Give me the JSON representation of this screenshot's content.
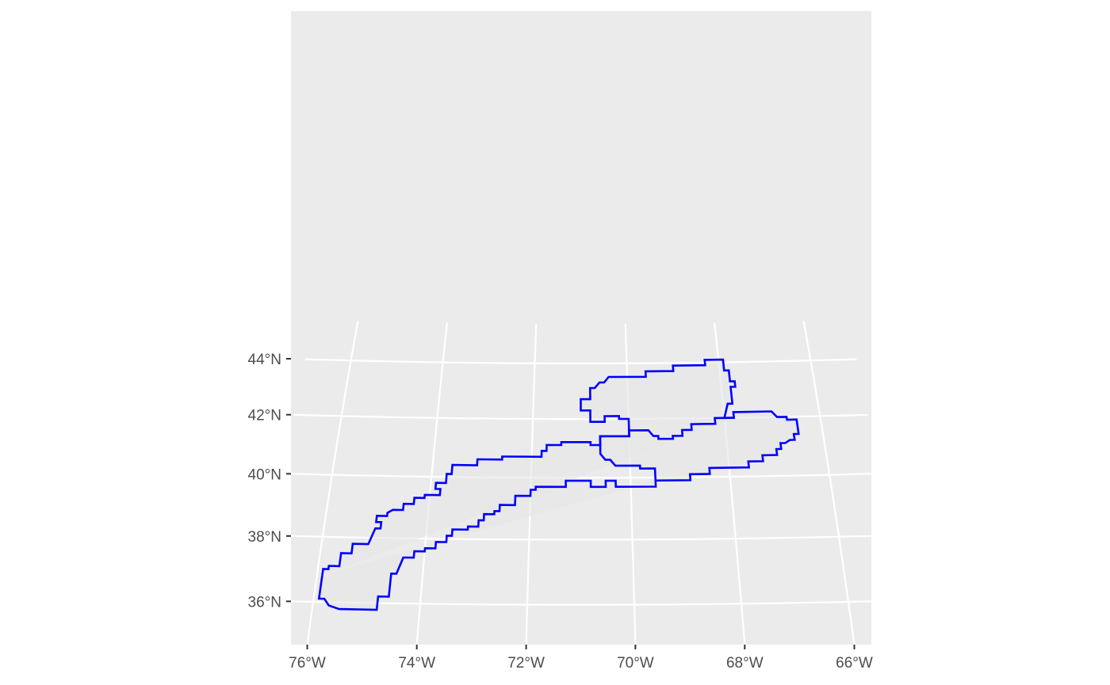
{
  "chart_data": {
    "type": "map",
    "projection": "conic",
    "xlim": [
      -76.2,
      -65.8
    ],
    "ylim": [
      35.5,
      44.9
    ],
    "x_breaks": [
      -76,
      -74,
      -72,
      -70,
      -68,
      -66
    ],
    "y_breaks": [
      36,
      38,
      40,
      42,
      44
    ],
    "x_tick_labels": [
      "76°W",
      "74°W",
      "72°W",
      "70°W",
      "68°W",
      "66°W"
    ],
    "y_tick_labels": [
      "36°N",
      "38°N",
      "40°N",
      "42°N",
      "44°N"
    ],
    "grid": true,
    "polygons": [
      {
        "name": "",
        "outline_color": "#0000ff",
        "fill_color": "#e6e6e6",
        "coords": [
          [
            -75.9,
            36.8
          ],
          [
            -75.9,
            36.1
          ],
          [
            -75.8,
            36.1
          ],
          [
            -75.7,
            35.9
          ],
          [
            -75.5,
            35.8
          ],
          [
            -74.8,
            35.8
          ],
          [
            -74.8,
            36.2
          ],
          [
            -74.6,
            36.2
          ],
          [
            -74.6,
            36.9
          ],
          [
            -74.5,
            36.9
          ],
          [
            -74.4,
            37.4
          ],
          [
            -74.2,
            37.4
          ],
          [
            -74.2,
            37.6
          ],
          [
            -74.0,
            37.6
          ],
          [
            -74.0,
            37.7
          ],
          [
            -73.8,
            37.7
          ],
          [
            -73.8,
            37.9
          ],
          [
            -73.6,
            37.9
          ],
          [
            -73.6,
            38.1
          ],
          [
            -73.5,
            38.1
          ],
          [
            -73.5,
            38.3
          ],
          [
            -73.2,
            38.3
          ],
          [
            -73.2,
            38.4
          ],
          [
            -73.0,
            38.4
          ],
          [
            -73.0,
            38.6
          ],
          [
            -72.9,
            38.6
          ],
          [
            -72.9,
            38.8
          ],
          [
            -72.7,
            38.8
          ],
          [
            -72.7,
            38.9
          ],
          [
            -72.6,
            38.9
          ],
          [
            -72.6,
            39.1
          ],
          [
            -72.3,
            39.1
          ],
          [
            -72.3,
            39.4
          ],
          [
            -72.0,
            39.4
          ],
          [
            -72.0,
            39.6
          ],
          [
            -71.9,
            39.6
          ],
          [
            -71.9,
            39.7
          ],
          [
            -71.3,
            39.7
          ],
          [
            -71.3,
            39.9
          ],
          [
            -70.8,
            39.9
          ],
          [
            -70.8,
            39.7
          ],
          [
            -70.5,
            39.7
          ],
          [
            -70.5,
            39.9
          ],
          [
            -70.3,
            39.9
          ],
          [
            -70.3,
            39.7
          ],
          [
            -69.5,
            39.7
          ],
          [
            -69.5,
            40.3
          ],
          [
            -69.8,
            40.3
          ],
          [
            -69.8,
            40.4
          ],
          [
            -70.3,
            40.4
          ],
          [
            -70.4,
            40.6
          ],
          [
            -70.5,
            40.6
          ],
          [
            -70.6,
            40.8
          ],
          [
            -70.6,
            41.4
          ],
          [
            -70.0,
            41.4
          ],
          [
            -70.0,
            42.0
          ],
          [
            -70.2,
            42.0
          ],
          [
            -70.2,
            42.1
          ],
          [
            -70.5,
            42.1
          ],
          [
            -70.5,
            41.9
          ],
          [
            -70.8,
            41.9
          ],
          [
            -70.8,
            42.3
          ],
          [
            -71.0,
            42.3
          ],
          [
            -71.0,
            42.5
          ],
          [
            -71.0,
            42.5
          ],
          [
            -71.0,
            42.7
          ],
          [
            -70.8,
            42.7
          ],
          [
            -70.8,
            43.1
          ],
          [
            -70.7,
            43.1
          ],
          [
            -70.6,
            43.3
          ],
          [
            -70.5,
            43.3
          ],
          [
            -70.4,
            43.5
          ],
          [
            -69.6,
            43.5
          ],
          [
            -69.6,
            43.7
          ],
          [
            -69.0,
            43.7
          ],
          [
            -69.0,
            43.9
          ],
          [
            -68.3,
            43.9
          ],
          [
            -68.3,
            44.1
          ],
          [
            -67.9,
            44.1
          ],
          [
            -67.9,
            43.7
          ],
          [
            -67.8,
            43.7
          ],
          [
            -67.8,
            43.3
          ],
          [
            -67.7,
            43.3
          ],
          [
            -67.7,
            43.1
          ],
          [
            -67.8,
            43.1
          ],
          [
            -67.8,
            42.5
          ],
          [
            -67.9,
            42.5
          ],
          [
            -68.0,
            42.0
          ],
          [
            -67.8,
            42.0
          ],
          [
            -67.8,
            42.2
          ],
          [
            -67.0,
            42.2
          ],
          [
            -66.9,
            42.0
          ],
          [
            -66.7,
            42.0
          ],
          [
            -66.7,
            41.9
          ],
          [
            -66.5,
            41.9
          ],
          [
            -66.5,
            41.4
          ],
          [
            -66.6,
            41.4
          ],
          [
            -66.6,
            41.2
          ],
          [
            -66.7,
            41.2
          ],
          [
            -66.8,
            41.1
          ],
          [
            -66.9,
            41.1
          ],
          [
            -66.9,
            40.9
          ],
          [
            -67.0,
            40.9
          ],
          [
            -67.0,
            40.7
          ],
          [
            -67.3,
            40.7
          ],
          [
            -67.3,
            40.5
          ],
          [
            -67.6,
            40.5
          ],
          [
            -67.6,
            40.3
          ],
          [
            -68.4,
            40.3
          ],
          [
            -68.4,
            40.1
          ],
          [
            -68.8,
            40.1
          ],
          [
            -68.8,
            39.9
          ],
          [
            -69.5,
            39.9
          ]
        ]
      },
      {
        "name": "",
        "outline_color": "#0000ff",
        "fill_color": "#e6e6e6",
        "coords": [
          [
            -75.9,
            36.8
          ],
          [
            -75.9,
            37.0
          ],
          [
            -75.8,
            37.0
          ],
          [
            -75.8,
            37.1
          ],
          [
            -75.6,
            37.1
          ],
          [
            -75.6,
            37.5
          ],
          [
            -75.4,
            37.5
          ],
          [
            -75.4,
            37.8
          ],
          [
            -75.1,
            37.8
          ],
          [
            -75.0,
            38.3
          ],
          [
            -74.9,
            38.3
          ],
          [
            -74.9,
            38.5
          ],
          [
            -75.0,
            38.5
          ],
          [
            -75.0,
            38.7
          ],
          [
            -74.8,
            38.7
          ],
          [
            -74.8,
            38.8
          ],
          [
            -74.7,
            38.9
          ],
          [
            -74.5,
            38.9
          ],
          [
            -74.5,
            39.1
          ],
          [
            -74.3,
            39.1
          ],
          [
            -74.3,
            39.3
          ],
          [
            -74.1,
            39.3
          ],
          [
            -74.1,
            39.4
          ],
          [
            -73.8,
            39.4
          ],
          [
            -73.8,
            39.6
          ],
          [
            -73.9,
            39.6
          ],
          [
            -73.9,
            39.8
          ],
          [
            -73.7,
            39.8
          ],
          [
            -73.7,
            40.1
          ],
          [
            -73.6,
            40.1
          ],
          [
            -73.6,
            40.4
          ],
          [
            -73.1,
            40.4
          ],
          [
            -73.1,
            40.6
          ],
          [
            -72.6,
            40.6
          ],
          [
            -72.6,
            40.7
          ],
          [
            -71.8,
            40.7
          ],
          [
            -71.8,
            40.9
          ],
          [
            -71.7,
            40.9
          ],
          [
            -71.7,
            41.1
          ],
          [
            -71.4,
            41.1
          ],
          [
            -71.4,
            41.2
          ],
          [
            -70.8,
            41.2
          ],
          [
            -70.8,
            41.1
          ],
          [
            -70.6,
            41.1
          ],
          [
            -70.6,
            41.4
          ],
          [
            -70.0,
            41.4
          ],
          [
            -70.0,
            41.6
          ],
          [
            -69.6,
            41.6
          ],
          [
            -69.5,
            41.4
          ],
          [
            -69.4,
            41.4
          ],
          [
            -69.4,
            41.3
          ],
          [
            -69.1,
            41.3
          ],
          [
            -69.1,
            41.4
          ],
          [
            -68.9,
            41.4
          ],
          [
            -68.9,
            41.6
          ],
          [
            -68.7,
            41.6
          ],
          [
            -68.7,
            41.8
          ],
          [
            -68.2,
            41.8
          ],
          [
            -68.2,
            42.0
          ],
          [
            -67.8,
            42.0
          ]
        ]
      }
    ]
  }
}
